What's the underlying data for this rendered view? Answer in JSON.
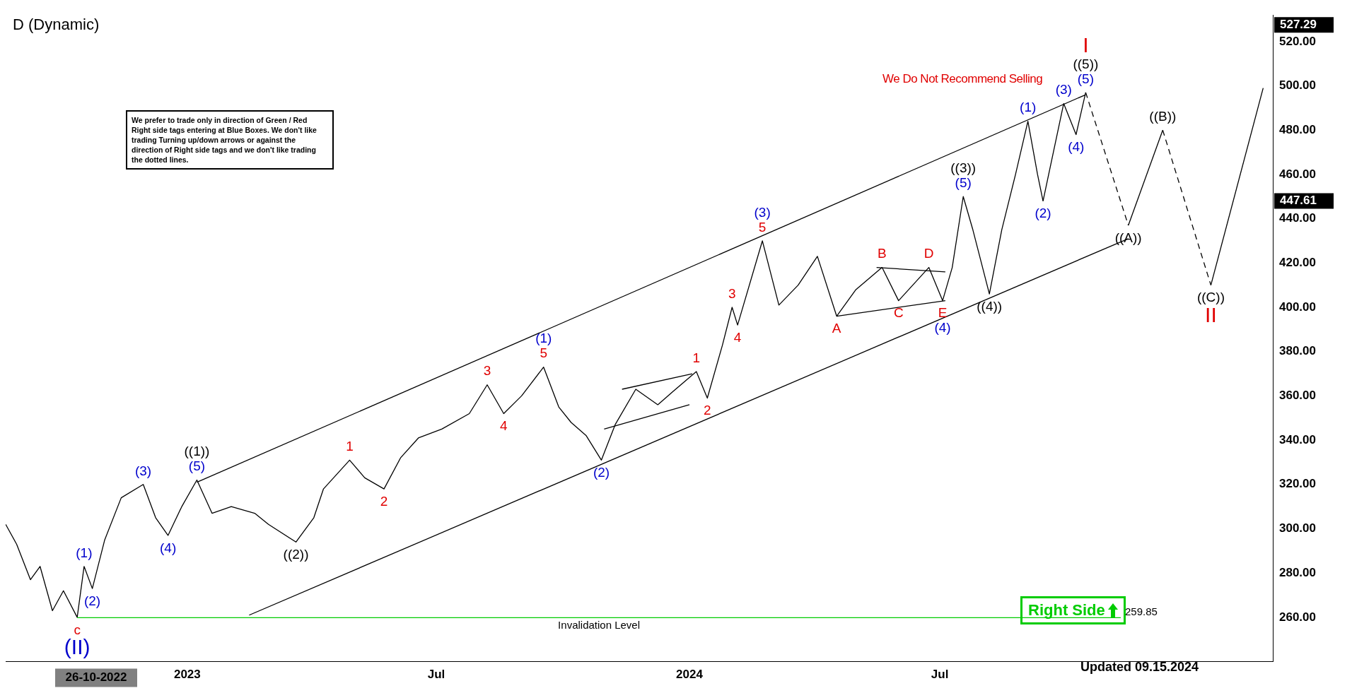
{
  "chart_data": {
    "type": "line",
    "title": "D (Dynamic)",
    "marker": "none",
    "grid": false,
    "legend": false,
    "xlim": [
      "2022-08-22",
      "2025-02-28"
    ],
    "ylim": [
      240,
      532
    ],
    "xticks": [
      {
        "value": "2023-01-01",
        "label": "2023"
      },
      {
        "value": "2023-07-01",
        "label": "Jul"
      },
      {
        "value": "2024-01-01",
        "label": "2024"
      },
      {
        "value": "2024-07-01",
        "label": "Jul"
      }
    ],
    "yticks": [
      {
        "value": 260,
        "label": "260.00"
      },
      {
        "value": 280,
        "label": "280.00"
      },
      {
        "value": 300,
        "label": "300.00"
      },
      {
        "value": 320,
        "label": "320.00"
      },
      {
        "value": 340,
        "label": "340.00"
      },
      {
        "value": 360,
        "label": "360.00"
      },
      {
        "value": 380,
        "label": "380.00"
      },
      {
        "value": 400,
        "label": "400.00"
      },
      {
        "value": 420,
        "label": "420.00"
      },
      {
        "value": 440,
        "label": "440.00"
      },
      {
        "value": 460,
        "label": "460.00"
      },
      {
        "value": 480,
        "label": "480.00"
      },
      {
        "value": 500,
        "label": "500.00"
      },
      {
        "value": 520,
        "label": "520.00"
      }
    ],
    "series": [
      {
        "color": "#000000",
        "line_style": "solid",
        "x": [
          "2022-08-22",
          "2022-08-30",
          "2022-09-09",
          "2022-09-16",
          "2022-09-25",
          "2022-10-03",
          "2022-10-13",
          "2022-10-18",
          "2022-10-24",
          "2022-11-02",
          "2022-11-14",
          "2022-11-30",
          "2022-12-09",
          "2022-12-18",
          "2022-12-28",
          "2023-01-08",
          "2023-01-19",
          "2023-02-02",
          "2023-02-19",
          "2023-03-01",
          "2023-03-21",
          "2023-04-03",
          "2023-04-10",
          "2023-04-29",
          "2023-05-10",
          "2023-05-24",
          "2023-06-05",
          "2023-06-18",
          "2023-07-05",
          "2023-07-25",
          "2023-08-07",
          "2023-08-19",
          "2023-09-01",
          "2023-09-17",
          "2023-09-28",
          "2023-10-07",
          "2023-10-18",
          "2023-10-29",
          "2023-11-08",
          "2023-11-23",
          "2023-12-09",
          "2023-12-20",
          "2024-01-06",
          "2024-01-14",
          "2024-01-25",
          "2024-02-01",
          "2024-02-05",
          "2024-02-23",
          "2024-03-06",
          "2024-03-20",
          "2024-04-03",
          "2024-04-17",
          "2024-05-01",
          "2024-05-20",
          "2024-06-01",
          "2024-06-23",
          "2024-07-03",
          "2024-07-10",
          "2024-07-18",
          "2024-07-25",
          "2024-08-06",
          "2024-08-15",
          "2024-08-25",
          "2024-09-03",
          "2024-09-10",
          "2024-09-14"
        ],
        "values": [
          302,
          293,
          277,
          283,
          263,
          272,
          260,
          283,
          273,
          295,
          314,
          320,
          305,
          297,
          310,
          322,
          307,
          310,
          307,
          302,
          294,
          305,
          318,
          331,
          323,
          318,
          332,
          341,
          345,
          352,
          365,
          352,
          360,
          373,
          355,
          348,
          342,
          331,
          347,
          363,
          356,
          362,
          371,
          359,
          383,
          400,
          392,
          430,
          401,
          410,
          423,
          396,
          408,
          418,
          403,
          418,
          403,
          418,
          450,
          435,
          406,
          435,
          460,
          484,
          460,
          448
        ]
      },
      {
        "color": "#000000",
        "line_style": "solid",
        "x": [
          "2024-09-14",
          "2024-09-29",
          "2024-10-08",
          "2024-10-15"
        ],
        "values": [
          448,
          492,
          478,
          497
        ]
      },
      {
        "color": "#000000",
        "line_style": "dashed",
        "x": [
          "2024-10-15",
          "2024-11-15"
        ],
        "values": [
          497,
          437
        ]
      },
      {
        "color": "#000000",
        "line_style": "solid",
        "x": [
          "2024-11-15",
          "2024-12-10"
        ],
        "values": [
          437,
          480
        ]
      },
      {
        "color": "#000000",
        "line_style": "dashed",
        "x": [
          "2024-12-10",
          "2025-01-14"
        ],
        "values": [
          480,
          410
        ]
      },
      {
        "color": "#000000",
        "line_style": "solid",
        "x": [
          "2025-01-14",
          "2025-02-21"
        ],
        "values": [
          410,
          499
        ]
      },
      {
        "color": "#000000",
        "line_style": "solid",
        "x": [
          "2023-01-08",
          "2024-10-15"
        ],
        "values": [
          321,
          496
        ]
      },
      {
        "color": "#000000",
        "line_style": "solid",
        "x": [
          "2023-02-15",
          "2024-11-15"
        ],
        "values": [
          261,
          431
        ]
      },
      {
        "color": "#000000",
        "line_style": "solid",
        "x": [
          "2023-11-13",
          "2024-01-03"
        ],
        "values": [
          363,
          370
        ]
      },
      {
        "color": "#000000",
        "line_style": "solid",
        "x": [
          "2023-10-31",
          "2024-01-01"
        ],
        "values": [
          345,
          356
        ]
      },
      {
        "color": "#000000",
        "line_style": "solid",
        "x": [
          "2024-05-16",
          "2024-07-05"
        ],
        "values": [
          418,
          416
        ]
      },
      {
        "color": "#000000",
        "line_style": "solid",
        "x": [
          "2024-04-17",
          "2024-07-05"
        ],
        "values": [
          396,
          403
        ]
      }
    ],
    "ref_lines": [
      {
        "axis": "y",
        "value": 259.85,
        "label": "259.85",
        "color": "#00cc00"
      }
    ],
    "annotations": [
      "We Do Not Recommend Selling",
      "We prefer to trade only in direction of Green / Red Right side tags entering at Blue Boxes. We don't like trading Turning up/down arrows or against the direction of Right side tags and we don't like trading the dotted lines.",
      "Right Side",
      "Updated 09.15.2024",
      "26-10-2022",
      "527.29",
      "447.61",
      "Invalidation Level",
      {
        "text": "c",
        "x": "2022-10-13",
        "y": 260
      },
      {
        "text": "(II)",
        "x": "2022-10-13",
        "y": 260
      },
      {
        "text": "(1)",
        "x": "2022-10-18",
        "y": 283
      },
      {
        "text": "(2)",
        "x": "2022-10-24",
        "y": 273
      },
      {
        "text": "(3)",
        "x": "2022-11-30",
        "y": 320
      },
      {
        "text": "(4)",
        "x": "2022-12-18",
        "y": 297
      },
      {
        "text": "(5)",
        "x": "2023-01-08",
        "y": 322
      },
      {
        "text": "((1))",
        "x": "2023-01-08",
        "y": 322
      },
      {
        "text": "((2))",
        "x": "2023-03-21",
        "y": 294
      },
      {
        "text": "1",
        "x": "2023-04-29",
        "y": 331
      },
      {
        "text": "2",
        "x": "2023-05-24",
        "y": 318
      },
      {
        "text": "3",
        "x": "2023-08-07",
        "y": 365
      },
      {
        "text": "4",
        "x": "2023-08-19",
        "y": 352
      },
      {
        "text": "5",
        "x": "2023-09-17",
        "y": 373
      },
      {
        "text": "(1)",
        "x": "2023-09-17",
        "y": 373
      },
      {
        "text": "(2)",
        "x": "2023-10-29",
        "y": 331
      },
      {
        "text": "1",
        "x": "2024-01-06",
        "y": 371
      },
      {
        "text": "2",
        "x": "2024-01-14",
        "y": 359
      },
      {
        "text": "3",
        "x": "2024-02-01",
        "y": 400
      },
      {
        "text": "4",
        "x": "2024-02-05",
        "y": 392
      },
      {
        "text": "5",
        "x": "2024-02-23",
        "y": 430
      },
      {
        "text": "(3)",
        "x": "2024-02-23",
        "y": 430
      },
      {
        "text": "A",
        "x": "2024-04-17",
        "y": 396
      },
      {
        "text": "B",
        "x": "2024-05-20",
        "y": 418
      },
      {
        "text": "C",
        "x": "2024-06-01",
        "y": 403
      },
      {
        "text": "D",
        "x": "2024-06-23",
        "y": 418
      },
      {
        "text": "E",
        "x": "2024-07-03",
        "y": 403
      },
      {
        "text": "(4)",
        "x": "2024-07-03",
        "y": 403
      },
      {
        "text": "(5)",
        "x": "2024-07-18",
        "y": 450
      },
      {
        "text": "((3))",
        "x": "2024-07-18",
        "y": 450
      },
      {
        "text": "((4))",
        "x": "2024-08-06",
        "y": 406
      },
      {
        "text": "(1)",
        "x": "2024-09-03",
        "y": 484
      },
      {
        "text": "(2)",
        "x": "2024-09-14",
        "y": 448
      },
      {
        "text": "(3)",
        "x": "2024-09-29",
        "y": 492
      },
      {
        "text": "(4)",
        "x": "2024-10-08",
        "y": 478
      },
      {
        "text": "(5)",
        "x": "2024-10-15",
        "y": 497
      },
      {
        "text": "((5))",
        "x": "2024-10-15",
        "y": 497
      },
      {
        "text": "I",
        "x": "2024-10-15",
        "y": 497
      },
      {
        "text": "((A))",
        "x": "2024-11-15",
        "y": 437
      },
      {
        "text": "((B))",
        "x": "2024-12-10",
        "y": 480
      },
      {
        "text": "((C))",
        "x": "2025-01-14",
        "y": 410
      },
      {
        "text": "II",
        "x": "2025-01-14",
        "y": 410
      }
    ]
  }
}
